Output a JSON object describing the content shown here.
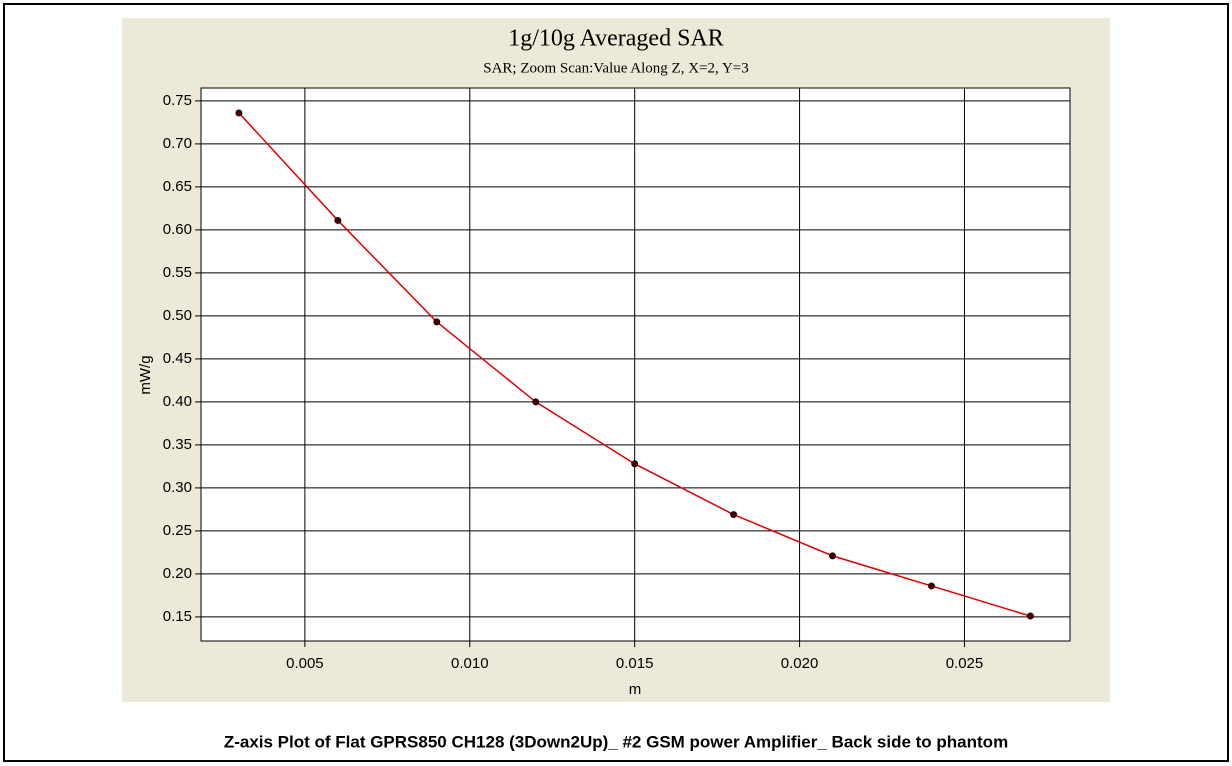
{
  "chart_data": {
    "type": "line",
    "title": "1g/10g Averaged SAR",
    "subtitle": "SAR; Zoom Scan:Value Along Z, X=2, Y=3",
    "x_label": "m",
    "y_label": "mW/g",
    "caption": "Z-axis Plot of Flat GPRS850 CH128 (3Down2Up)_ #2 GSM power Amplifier_ Back side to phantom",
    "x": [
      0.003,
      0.006,
      0.009,
      0.012,
      0.015,
      0.018,
      0.021,
      0.024,
      0.027
    ],
    "series": [
      {
        "name": "SAR",
        "color": "#e00000",
        "values": [
          0.736,
          0.611,
          0.493,
          0.4,
          0.328,
          0.269,
          0.221,
          0.186,
          0.151
        ]
      }
    ],
    "xlim": [
      0.00185,
      0.0282
    ],
    "ylim": [
      0.122,
      0.765
    ],
    "xticks": [
      0.005,
      {
        "value": 0.01,
        "label": "0.010"
      },
      0.015,
      {
        "value": 0.02,
        "label": "0.020"
      },
      0.025
    ],
    "yticks": [
      {
        "value": 0.15,
        "label": "0.15"
      },
      {
        "value": 0.2,
        "label": "0.20"
      },
      0.25,
      {
        "value": 0.3,
        "label": "0.30"
      },
      0.35,
      {
        "value": 0.4,
        "label": "0.40"
      },
      0.45,
      {
        "value": 0.5,
        "label": "0.50"
      },
      0.55,
      {
        "value": 0.6,
        "label": "0.60"
      },
      0.65,
      {
        "value": 0.7,
        "label": "0.70"
      },
      0.75
    ],
    "grid": true
  }
}
